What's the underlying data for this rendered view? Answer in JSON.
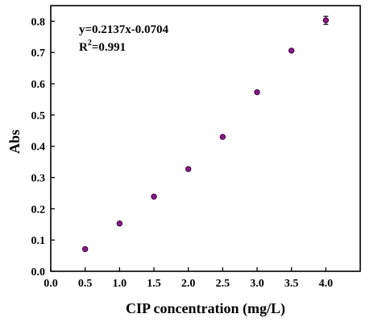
{
  "chart_data": {
    "type": "scatter",
    "title": "",
    "xlabel": "CIP concentration (mg/L)",
    "ylabel": "Abs",
    "xlim": [
      0.0,
      4.5
    ],
    "ylim": [
      0.0,
      0.85
    ],
    "xticks": [
      "0.0",
      "0.5",
      "1.0",
      "1.5",
      "2.0",
      "2.5",
      "3.0",
      "3.5",
      "4.0"
    ],
    "xtick_values": [
      0.0,
      0.5,
      1.0,
      1.5,
      2.0,
      2.5,
      3.0,
      3.5,
      4.0
    ],
    "yticks": [
      "0.0",
      "0.1",
      "0.2",
      "0.3",
      "0.4",
      "0.5",
      "0.6",
      "0.7",
      "0.8"
    ],
    "ytick_values": [
      0.0,
      0.1,
      0.2,
      0.3,
      0.4,
      0.5,
      0.6,
      0.7,
      0.8
    ],
    "series": [
      {
        "x": [
          0.5,
          1.0,
          1.5,
          2.0,
          2.5,
          3.0,
          3.5,
          4.0
        ],
        "y": [
          0.071,
          0.153,
          0.239,
          0.327,
          0.43,
          0.573,
          0.706,
          0.803
        ],
        "error": [
          0.003,
          0.003,
          0.003,
          0.003,
          0.003,
          0.003,
          0.003,
          0.013
        ]
      }
    ],
    "annotation": {
      "equation": "y=0.2137x-0.0704",
      "r2_prefix": "R",
      "r2_sup": "2",
      "r2_value": "=0.991"
    },
    "grid": false,
    "point_color": "#8a1a8a"
  }
}
